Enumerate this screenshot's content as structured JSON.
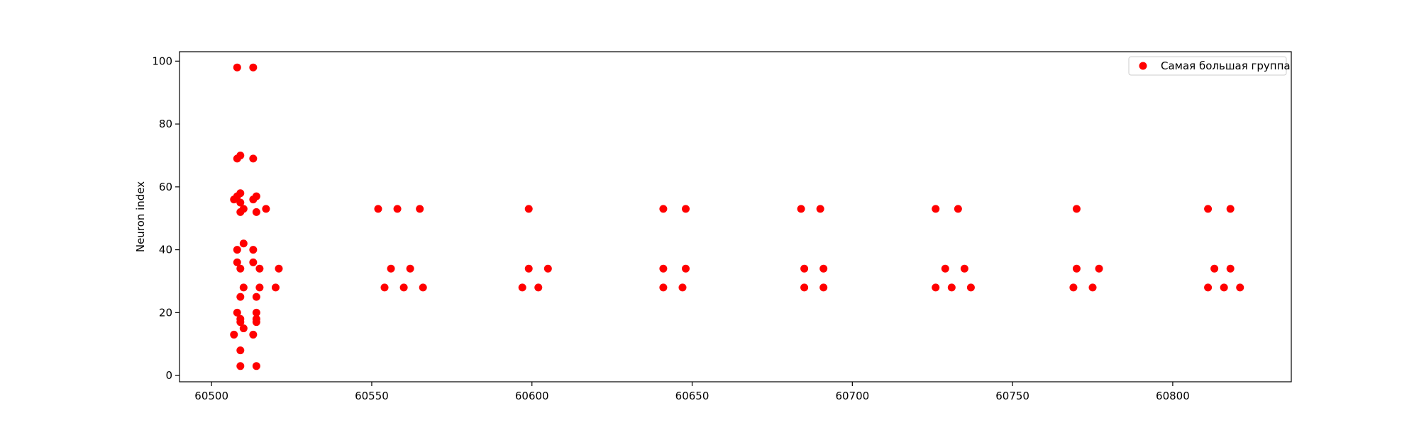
{
  "chart_data": {
    "type": "scatter",
    "title": "",
    "xlabel": "",
    "ylabel": "Neuron index",
    "xlim": [
      60490,
      60837
    ],
    "ylim": [
      -2,
      103
    ],
    "xticks": [
      60500,
      60550,
      60600,
      60650,
      60700,
      60750,
      60800
    ],
    "yticks": [
      0,
      20,
      40,
      60,
      80,
      100
    ],
    "grid": false,
    "legend": {
      "placement": "top-right"
    },
    "series": [
      {
        "name": "Самая большая группа",
        "color": "#ff0000",
        "marker": "circle",
        "points": [
          [
            60508,
            98
          ],
          [
            60513,
            98
          ],
          [
            60508,
            69
          ],
          [
            60509,
            70
          ],
          [
            60513,
            69
          ],
          [
            60507,
            56
          ],
          [
            60508,
            57
          ],
          [
            60509,
            58
          ],
          [
            60509,
            55
          ],
          [
            60510,
            53
          ],
          [
            60509,
            52
          ],
          [
            60513,
            56
          ],
          [
            60514,
            57
          ],
          [
            60514,
            52
          ],
          [
            60517,
            53
          ],
          [
            60510,
            42
          ],
          [
            60508,
            40
          ],
          [
            60513,
            40
          ],
          [
            60508,
            36
          ],
          [
            60509,
            34
          ],
          [
            60513,
            36
          ],
          [
            60515,
            34
          ],
          [
            60521,
            34
          ],
          [
            60510,
            28
          ],
          [
            60515,
            28
          ],
          [
            60520,
            28
          ],
          [
            60509,
            25
          ],
          [
            60514,
            25
          ],
          [
            60508,
            20
          ],
          [
            60509,
            18
          ],
          [
            60509,
            17
          ],
          [
            60514,
            20
          ],
          [
            60514,
            18
          ],
          [
            60514,
            17
          ],
          [
            60510,
            15
          ],
          [
            60507,
            13
          ],
          [
            60513,
            13
          ],
          [
            60509,
            8
          ],
          [
            60509,
            3
          ],
          [
            60514,
            3
          ],
          [
            60552,
            53
          ],
          [
            60558,
            53
          ],
          [
            60565,
            53
          ],
          [
            60556,
            34
          ],
          [
            60562,
            34
          ],
          [
            60554,
            28
          ],
          [
            60560,
            28
          ],
          [
            60566,
            28
          ],
          [
            60599,
            53
          ],
          [
            60599,
            34
          ],
          [
            60605,
            34
          ],
          [
            60597,
            28
          ],
          [
            60602,
            28
          ],
          [
            60641,
            53
          ],
          [
            60648,
            53
          ],
          [
            60641,
            34
          ],
          [
            60648,
            34
          ],
          [
            60641,
            28
          ],
          [
            60647,
            28
          ],
          [
            60684,
            53
          ],
          [
            60690,
            53
          ],
          [
            60685,
            34
          ],
          [
            60691,
            34
          ],
          [
            60685,
            28
          ],
          [
            60691,
            28
          ],
          [
            60726,
            53
          ],
          [
            60733,
            53
          ],
          [
            60729,
            34
          ],
          [
            60735,
            34
          ],
          [
            60726,
            28
          ],
          [
            60731,
            28
          ],
          [
            60737,
            28
          ],
          [
            60770,
            53
          ],
          [
            60770,
            34
          ],
          [
            60777,
            34
          ],
          [
            60769,
            28
          ],
          [
            60775,
            28
          ],
          [
            60811,
            53
          ],
          [
            60818,
            53
          ],
          [
            60813,
            34
          ],
          [
            60818,
            34
          ],
          [
            60811,
            28
          ],
          [
            60816,
            28
          ],
          [
            60821,
            28
          ]
        ]
      }
    ]
  }
}
